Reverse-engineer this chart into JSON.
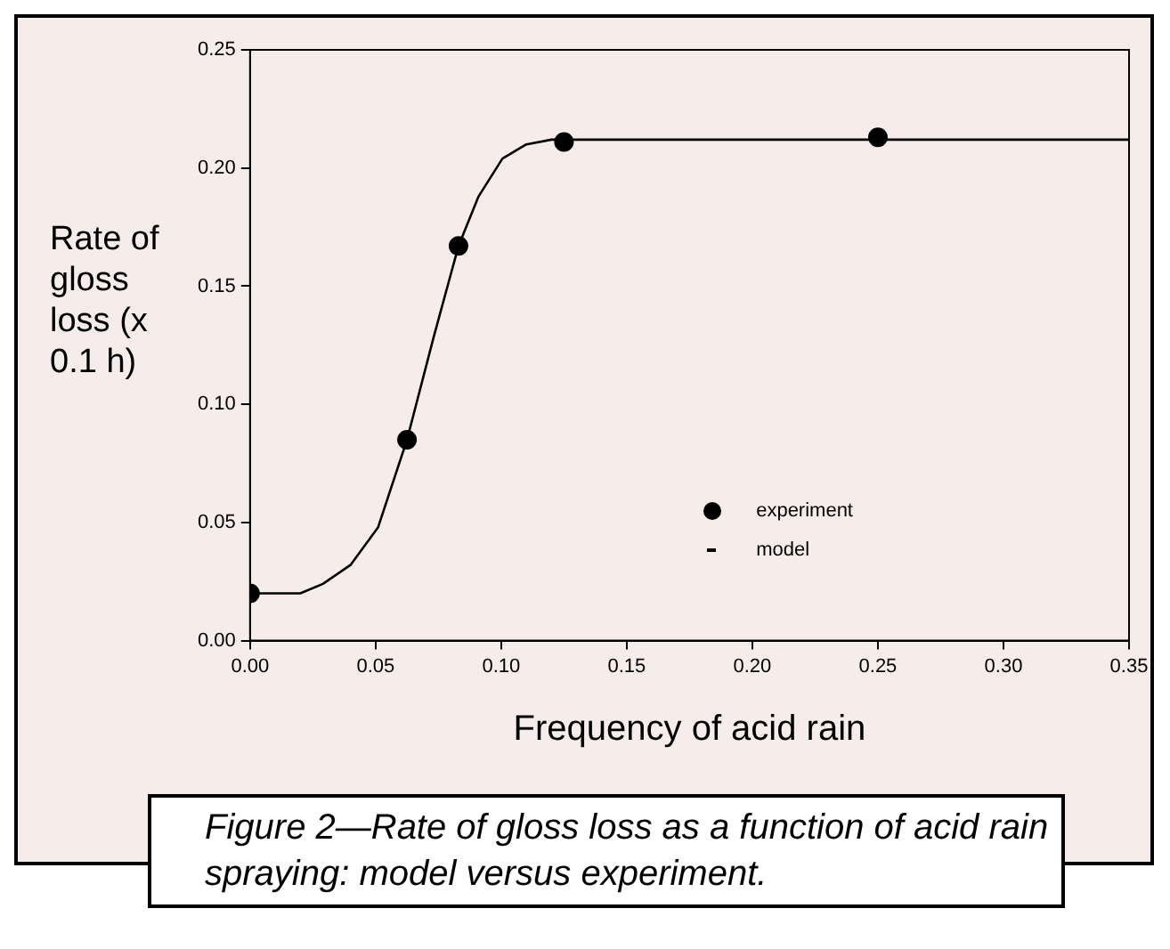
{
  "chart_data": {
    "type": "scatter",
    "xlabel": "Frequency of acid rain",
    "ylabel": "Rate of gloss loss (x 0.1 h)",
    "annotations": [
      "Figure 2—Rate of gloss loss as a function of acid rain spraying: model versus experiment."
    ],
    "xlim": [
      0,
      0.35
    ],
    "xticks": [
      {
        "value": 0,
        "label": "0.00"
      },
      {
        "value": 0.05,
        "label": "0.05"
      },
      {
        "value": 0.1,
        "label": "0.10"
      },
      {
        "value": 0.15,
        "label": "0.15"
      },
      {
        "value": 0.2,
        "label": "0.20"
      },
      {
        "value": 0.25,
        "label": "0.25"
      },
      {
        "value": 0.3,
        "label": "0.30"
      },
      {
        "value": 0.35,
        "label": "0.35"
      }
    ],
    "ylim": [
      0,
      0.25
    ],
    "yticks": [
      {
        "value": 0,
        "label": "0.00"
      },
      {
        "value": 0.05,
        "label": "0.05"
      },
      {
        "value": 0.1,
        "label": "0.10"
      },
      {
        "value": 0.15,
        "label": "0.15"
      },
      {
        "value": 0.2,
        "label": "0.20"
      },
      {
        "value": 0.25,
        "label": "0.25"
      }
    ],
    "grid": false,
    "legend": "bottom right",
    "series": [
      {
        "name": "experiment",
        "marker": "circle",
        "color": "#000000",
        "x": [
          0,
          0.0625,
          0.083,
          0.125,
          0.25
        ],
        "values": [
          0.02,
          0.085,
          0.167,
          0.211,
          0.213
        ]
      },
      {
        "name": "model",
        "type": "line",
        "marker": "none",
        "line_style": "solid",
        "color": "#000000",
        "x": [
          0,
          0.02,
          0.029,
          0.04,
          0.051,
          0.0625,
          0.073,
          0.083,
          0.091,
          0.1005,
          0.11,
          0.12,
          0.2,
          0.35
        ],
        "values": [
          0.02,
          0.02,
          0.024,
          0.032,
          0.048,
          0.085,
          0.128,
          0.167,
          0.188,
          0.204,
          0.21,
          0.212,
          0.212,
          0.212
        ]
      }
    ]
  }
}
